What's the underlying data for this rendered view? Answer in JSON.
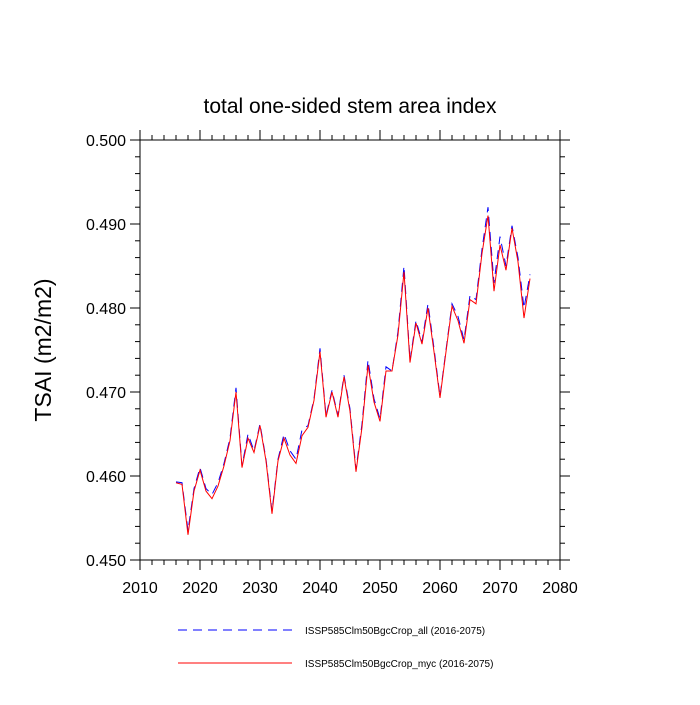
{
  "chart_data": {
    "type": "line",
    "title": "total one-sided stem area index",
    "xlabel": "",
    "ylabel": "TSAI  (m2/m2)",
    "xlim": [
      2010,
      2080
    ],
    "ylim": [
      0.45,
      0.5
    ],
    "x_ticks": [
      2010,
      2020,
      2030,
      2040,
      2050,
      2060,
      2070,
      2080
    ],
    "y_ticks": [
      0.45,
      0.46,
      0.47,
      0.48,
      0.49,
      0.5
    ],
    "x_tick_labels": [
      "2010",
      "2020",
      "2030",
      "2040",
      "2050",
      "2060",
      "2070",
      "2080"
    ],
    "y_tick_labels": [
      "0.450",
      "0.460",
      "0.470",
      "0.480",
      "0.490",
      "0.500"
    ],
    "grid": false,
    "legend_position": "bottom",
    "x": [
      2016,
      2017,
      2018,
      2019,
      2020,
      2021,
      2022,
      2023,
      2024,
      2025,
      2026,
      2027,
      2028,
      2029,
      2030,
      2031,
      2032,
      2033,
      2034,
      2035,
      2036,
      2037,
      2038,
      2039,
      2040,
      2041,
      2042,
      2043,
      2044,
      2045,
      2046,
      2047,
      2048,
      2049,
      2050,
      2051,
      2052,
      2053,
      2054,
      2055,
      2056,
      2057,
      2058,
      2059,
      2060,
      2061,
      2062,
      2063,
      2064,
      2065,
      2066,
      2067,
      2068,
      2069,
      2070,
      2071,
      2072,
      2073,
      2074,
      2075
    ],
    "series": [
      {
        "name": "ISSP585Clm50BgcCrop_all (2016-2075)",
        "color": "#0000ff",
        "dash": "dashed",
        "values": [
          0.4593,
          0.4592,
          0.4535,
          0.4585,
          0.461,
          0.4585,
          0.4578,
          0.4592,
          0.4615,
          0.4645,
          0.4705,
          0.4612,
          0.465,
          0.463,
          0.4662,
          0.462,
          0.4558,
          0.462,
          0.465,
          0.463,
          0.462,
          0.4655,
          0.466,
          0.4692,
          0.4752,
          0.4672,
          0.4702,
          0.4672,
          0.472,
          0.468,
          0.4608,
          0.4662,
          0.4738,
          0.4692,
          0.4668,
          0.473,
          0.4725,
          0.4772,
          0.485,
          0.4738,
          0.4785,
          0.476,
          0.4805,
          0.4752,
          0.4695,
          0.475,
          0.4805,
          0.479,
          0.4762,
          0.4815,
          0.481,
          0.487,
          0.492,
          0.483,
          0.4885,
          0.485,
          0.4898,
          0.486,
          0.48,
          0.484
        ]
      },
      {
        "name": "ISSP585Clm50BgcCrop_myc (2016-2075)",
        "color": "#ff0000",
        "dash": "solid",
        "values": [
          0.4592,
          0.459,
          0.453,
          0.4582,
          0.4607,
          0.4582,
          0.4573,
          0.4588,
          0.4612,
          0.4642,
          0.47,
          0.461,
          0.4645,
          0.4628,
          0.466,
          0.4618,
          0.4555,
          0.4618,
          0.4645,
          0.4625,
          0.4615,
          0.4648,
          0.4658,
          0.469,
          0.4748,
          0.467,
          0.47,
          0.467,
          0.4718,
          0.4677,
          0.4605,
          0.4658,
          0.4732,
          0.4688,
          0.4665,
          0.4725,
          0.4725,
          0.4768,
          0.4843,
          0.4735,
          0.4782,
          0.4757,
          0.48,
          0.4748,
          0.4693,
          0.4748,
          0.4802,
          0.4785,
          0.4758,
          0.481,
          0.4805,
          0.4865,
          0.491,
          0.482,
          0.4875,
          0.4845,
          0.4895,
          0.4855,
          0.4788,
          0.4835
        ]
      }
    ]
  }
}
